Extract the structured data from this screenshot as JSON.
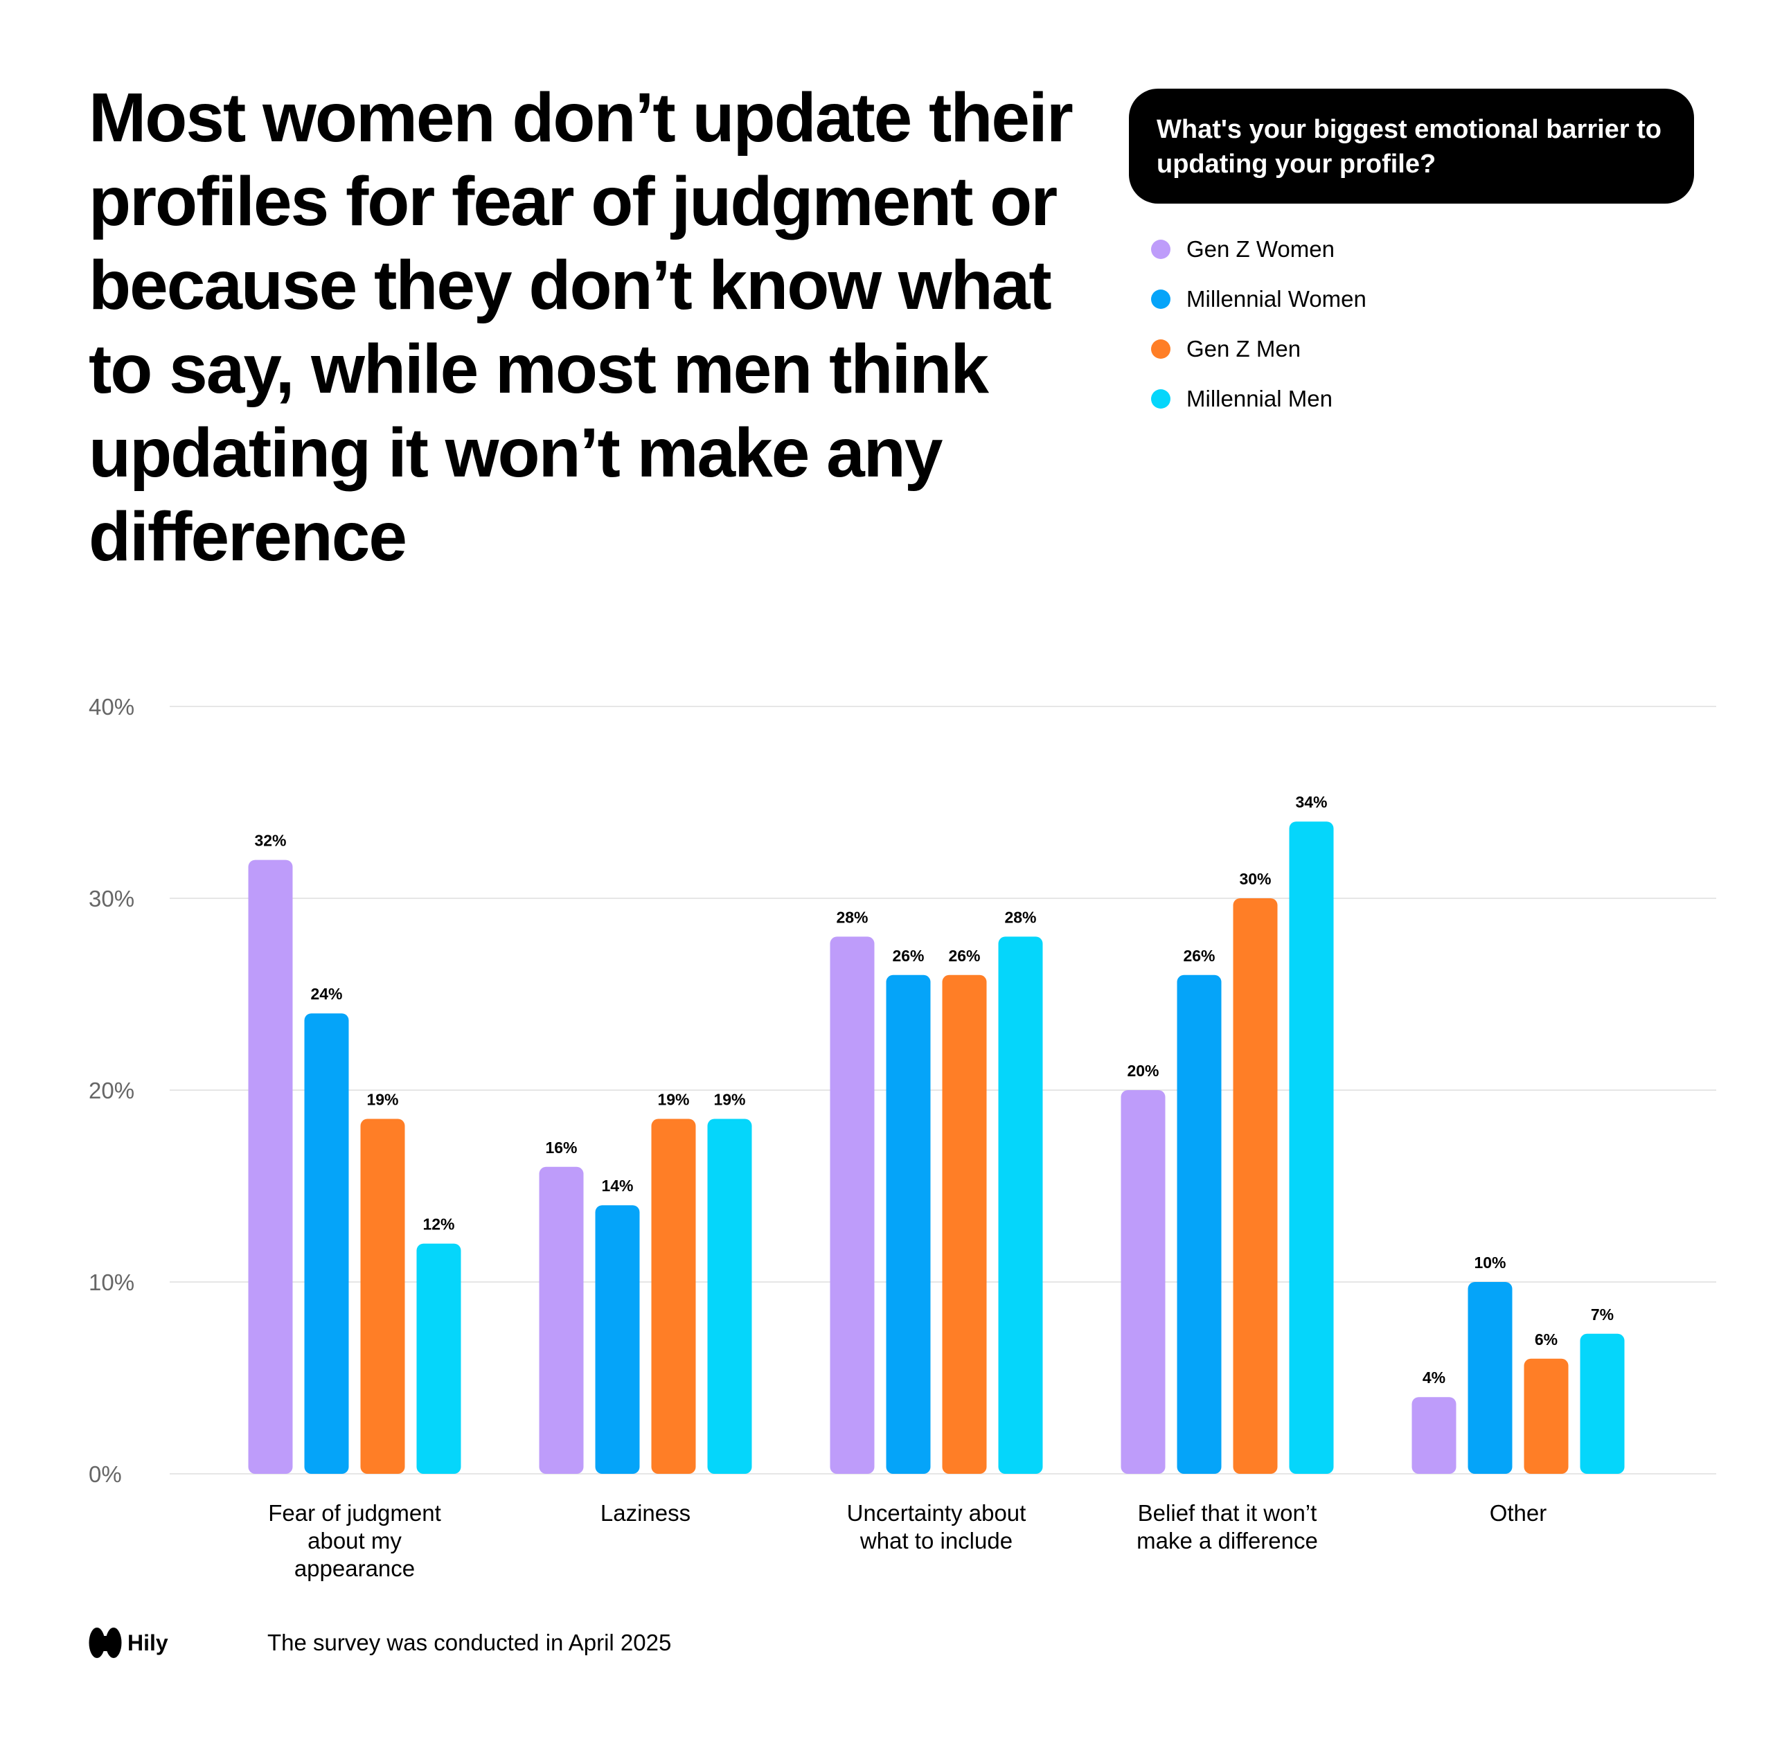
{
  "headline": "Most women don’t update their profiles for fear of judgment or because they don’t know what to say, while most men think updating it won’t make any difference",
  "question": "What's your biggest emotional barrier to updating your profile?",
  "brand": {
    "name": "Hily"
  },
  "footer_note": "The survey was conducted in April 2025",
  "colors": {
    "gen_z_women": "#BE9CFA",
    "millennial_women": "#05A4F9",
    "gen_z_men": "#FF7E26",
    "millennial_men": "#05D6FB",
    "grid": "#E6E6E6",
    "axis_text": "#666666"
  },
  "chart_data": {
    "type": "bar",
    "title": "",
    "xlabel": "",
    "ylabel": "",
    "ylim": [
      0,
      40
    ],
    "yticks": [
      0,
      10,
      20,
      30,
      40
    ],
    "ytick_labels": [
      "0%",
      "10%",
      "20%",
      "30%",
      "40%"
    ],
    "grid": true,
    "legend_position": "top-right",
    "categories": [
      [
        "Fear of judgment",
        "about my",
        "appearance"
      ],
      [
        "Laziness"
      ],
      [
        "Uncertainty about",
        "what to include"
      ],
      [
        "Belief that it won’t",
        "make a difference"
      ],
      [
        "Other"
      ]
    ],
    "series": [
      {
        "name": "Gen Z Women",
        "color": "#BE9CFA",
        "values": [
          32,
          16,
          28,
          20,
          4
        ],
        "labels": [
          "32%",
          "16%",
          "28%",
          "20%",
          "4%"
        ]
      },
      {
        "name": "Millennial Women",
        "color": "#05A4F9",
        "values": [
          24,
          14,
          26,
          26,
          10
        ],
        "labels": [
          "24%",
          "14%",
          "26%",
          "26%",
          "10%"
        ]
      },
      {
        "name": "Gen Z Men",
        "color": "#FF7E26",
        "values": [
          18.5,
          18.5,
          26,
          30,
          6
        ],
        "labels": [
          "19%",
          "19%",
          "26%",
          "30%",
          "6%"
        ]
      },
      {
        "name": "Millennial Men",
        "color": "#05D6FB",
        "values": [
          12,
          18.5,
          28,
          34,
          7.3
        ],
        "labels": [
          "12%",
          "19%",
          "28%",
          "34%",
          "7%"
        ]
      }
    ]
  }
}
